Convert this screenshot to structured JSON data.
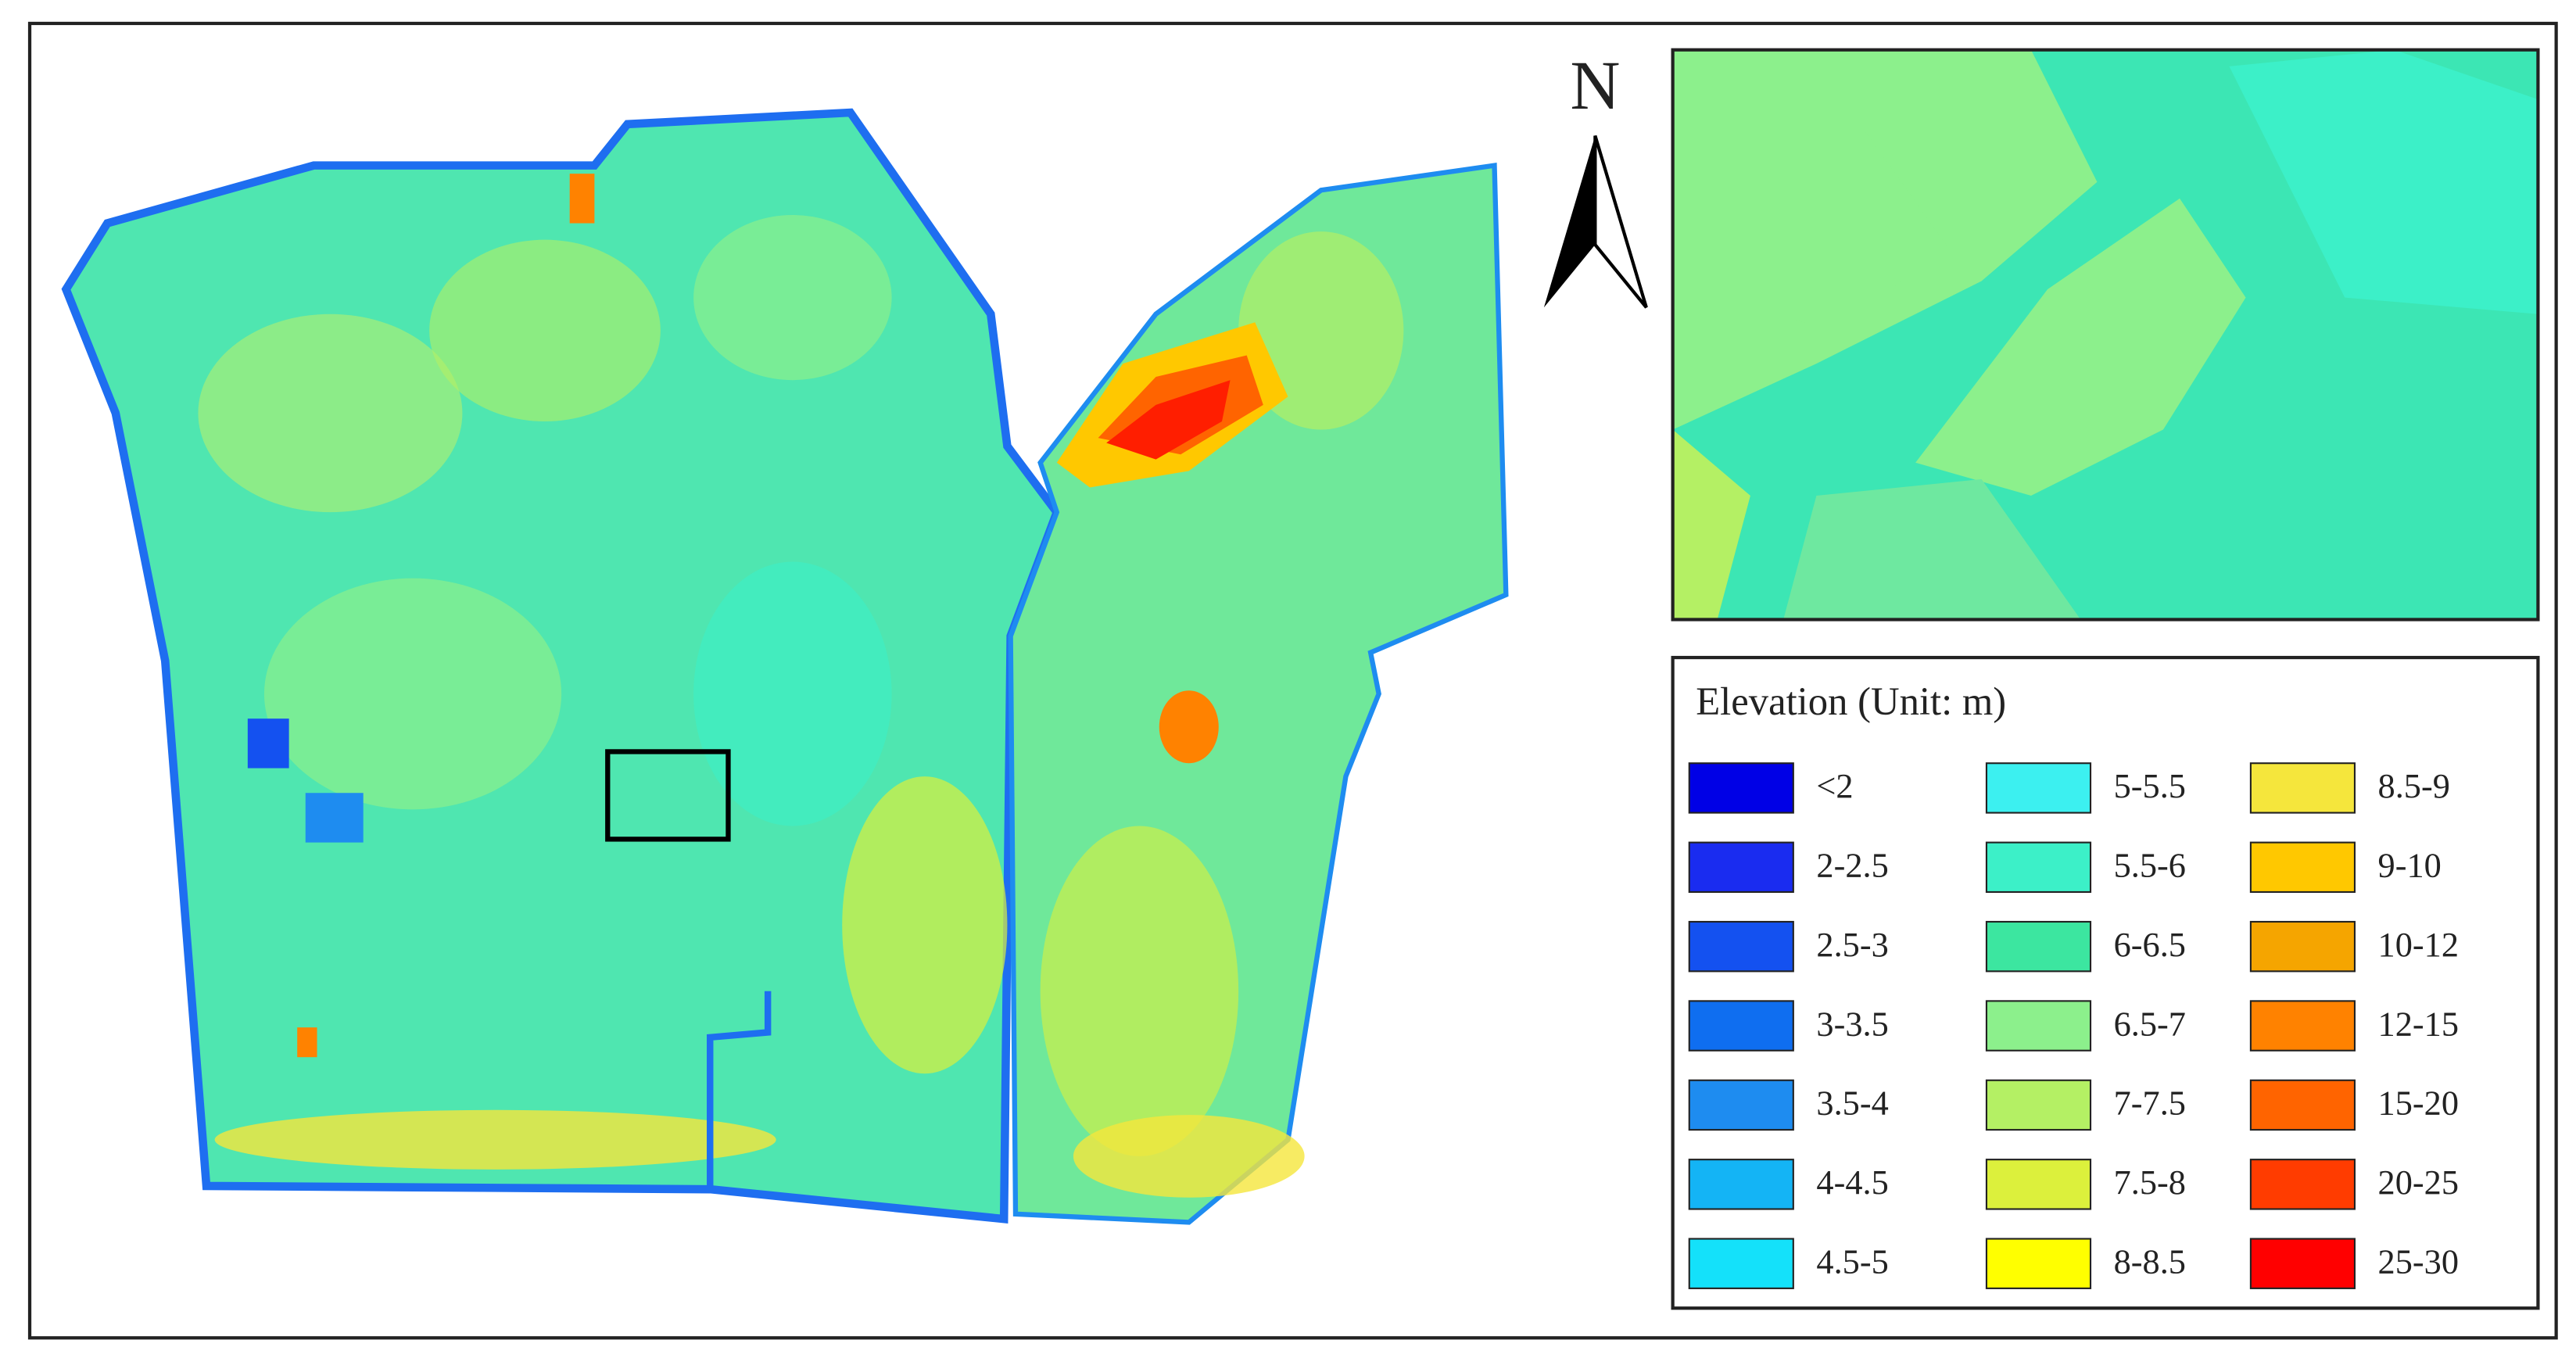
{
  "north_label": "N",
  "legend": {
    "title": "Elevation (Unit: m)",
    "items": [
      {
        "label": "<2",
        "color": "#0000e6"
      },
      {
        "label": "2-2.5",
        "color": "#1a2cf0"
      },
      {
        "label": "2.5-3",
        "color": "#1451f0"
      },
      {
        "label": "3-3.5",
        "color": "#0f6ef0"
      },
      {
        "label": "3.5-4",
        "color": "#1e8cf0"
      },
      {
        "label": "4-4.5",
        "color": "#14b4f5"
      },
      {
        "label": "4.5-5",
        "color": "#14e1fa"
      },
      {
        "label": "5-5.5",
        "color": "#3cf0f0"
      },
      {
        "label": "5.5-6",
        "color": "#3cf0c8"
      },
      {
        "label": "6-6.5",
        "color": "#3ce6a0"
      },
      {
        "label": "6.5-7",
        "color": "#8cf08c"
      },
      {
        "label": "7-7.5",
        "color": "#b4f064"
      },
      {
        "label": "7.5-8",
        "color": "#dcf03c"
      },
      {
        "label": "8-8.5",
        "color": "#ffff00"
      },
      {
        "label": "8.5-9",
        "color": "#f5e63c"
      },
      {
        "label": "9-10",
        "color": "#ffc800"
      },
      {
        "label": "10-12",
        "color": "#f5a500"
      },
      {
        "label": "12-15",
        "color": "#ff8200"
      },
      {
        "label": "15-20",
        "color": "#ff6400"
      },
      {
        "label": "20-25",
        "color": "#ff3c00"
      },
      {
        "label": "25-30",
        "color": "#ff0000"
      }
    ]
  }
}
